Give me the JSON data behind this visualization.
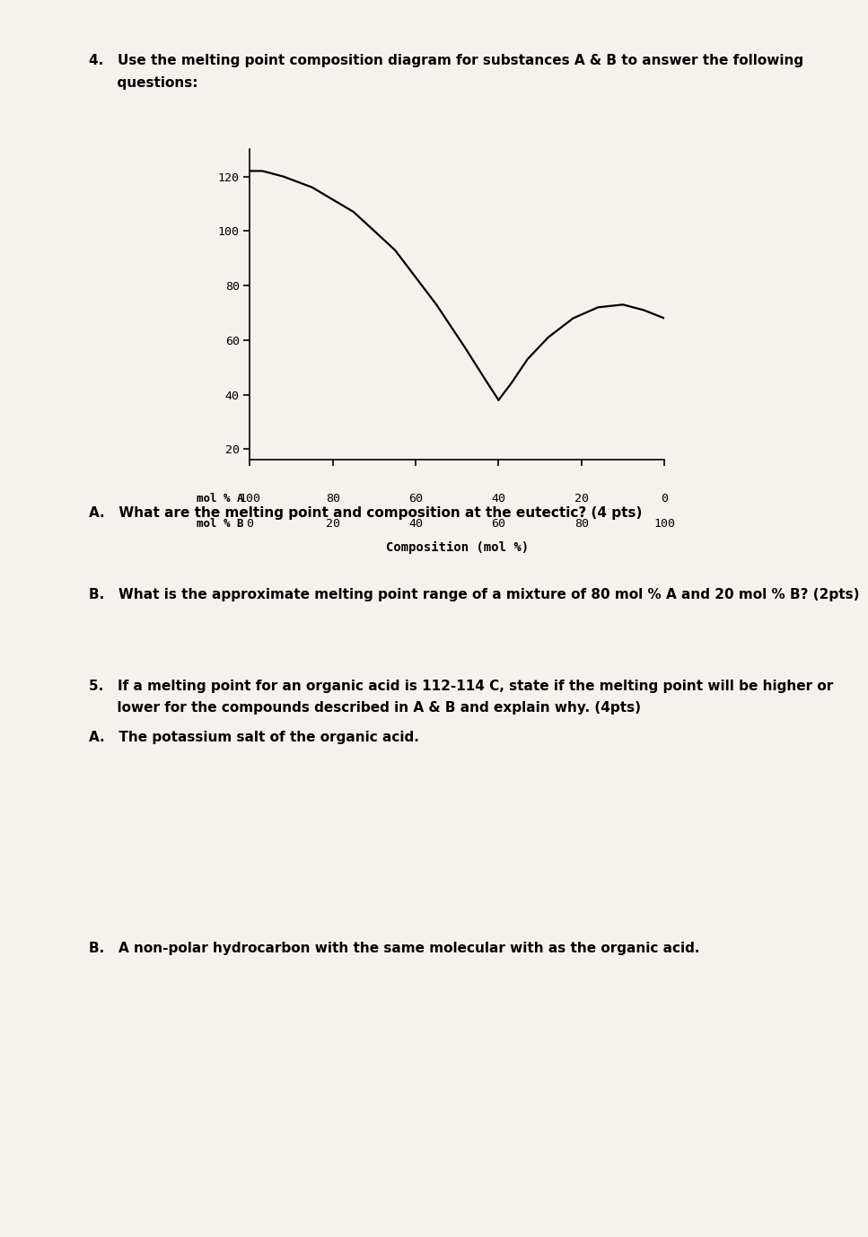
{
  "bg_color": "#f5f2ee",
  "page_width": 9.42,
  "page_height": 13.58,
  "q4_text_line1": "4.   Use the melting point composition diagram for substances A & B to answer the following",
  "q4_text_line2": "      questions:",
  "q4A_text": "A.   What are the melting point and composition at the eutectic? (4 pts)",
  "q4B_text": "B.   What is the approximate melting point range of a mixture of 80 mol % A and 20 mol % B? (2pts)",
  "q5_text_line1": "5.   If a melting point for an organic acid is 112-114 C, state if the melting point will be higher or",
  "q5_text_line2": "      lower for the compounds described in A & B and explain why. (4pts)",
  "q5A_text": "A.   The potassium salt of the organic acid.",
  "q5B_text": "B.   A non-polar hydrocarbon with the same molecular with as the organic acid.",
  "chart": {
    "yticks": [
      20,
      40,
      60,
      80,
      100,
      120
    ],
    "mol_A_ticks": [
      "100",
      "80",
      "60",
      "40",
      "20",
      "0"
    ],
    "mol_B_ticks": [
      "0",
      "20",
      "40",
      "60",
      "80",
      "100"
    ],
    "composition_label": "Composition (mol %)",
    "curve1_x": [
      0,
      3,
      8,
      15,
      25,
      35,
      45,
      52,
      57,
      60
    ],
    "curve1_y": [
      122,
      122,
      120,
      116,
      107,
      93,
      73,
      57,
      45,
      38
    ],
    "curve2_x": [
      60,
      63,
      67,
      72,
      78,
      84,
      90,
      95,
      100
    ],
    "curve2_y": [
      38,
      44,
      53,
      61,
      68,
      72,
      73,
      71,
      68
    ],
    "ymin": 16,
    "ymax": 130,
    "xmin": 0,
    "xmax": 100
  }
}
